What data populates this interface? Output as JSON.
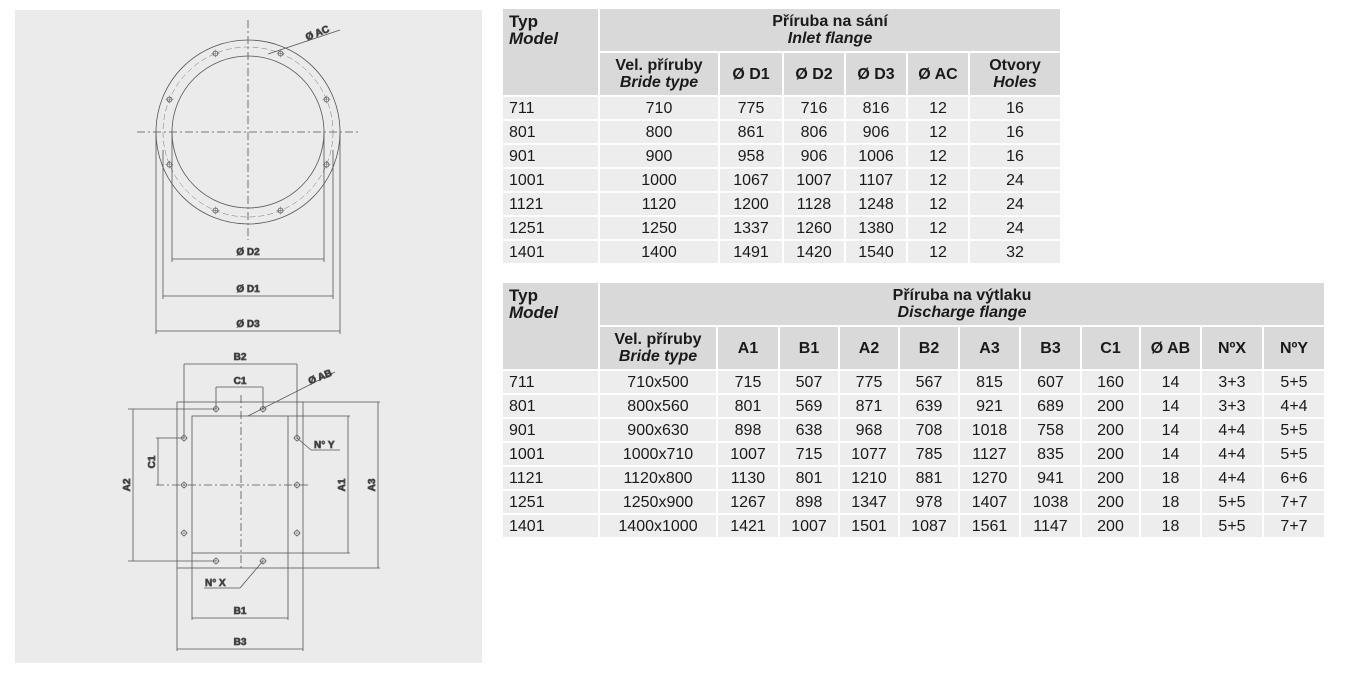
{
  "drawing": {
    "labels": {
      "ac": "Ø AC",
      "d1": "Ø D1",
      "d2": "Ø D2",
      "d3": "Ø D3",
      "ab": "Ø AB",
      "a1": "A1",
      "a2": "A2",
      "a3": "A3",
      "b1": "B1",
      "b2": "B2",
      "b3": "B3",
      "c1": "C1",
      "c1v": "C1",
      "nx": "N° X",
      "ny": "N° Y"
    }
  },
  "inlet": {
    "typ": "Typ",
    "model": "Model",
    "title": "Příruba na sání",
    "subtitle": "Inlet flange",
    "vel": "Vel. příruby",
    "bride": "Bride type",
    "cols": [
      "Ø D1",
      "Ø D2",
      "Ø D3",
      "Ø AC"
    ],
    "holes_cz": "Otvory",
    "holes_en": "Holes",
    "rows": [
      [
        "711",
        "710",
        "775",
        "716",
        "816",
        "12",
        "16"
      ],
      [
        "801",
        "800",
        "861",
        "806",
        "906",
        "12",
        "16"
      ],
      [
        "901",
        "900",
        "958",
        "906",
        "1006",
        "12",
        "16"
      ],
      [
        "1001",
        "1000",
        "1067",
        "1007",
        "1107",
        "12",
        "24"
      ],
      [
        "1121",
        "1120",
        "1200",
        "1128",
        "1248",
        "12",
        "24"
      ],
      [
        "1251",
        "1250",
        "1337",
        "1260",
        "1380",
        "12",
        "24"
      ],
      [
        "1401",
        "1400",
        "1491",
        "1420",
        "1540",
        "12",
        "32"
      ]
    ]
  },
  "discharge": {
    "typ": "Typ",
    "model": "Model",
    "title": "Příruba na výtlaku",
    "subtitle": "Discharge flange",
    "vel": "Vel. příruby",
    "bride": "Bride type",
    "cols": [
      "A1",
      "B1",
      "A2",
      "B2",
      "A3",
      "B3",
      "C1",
      "Ø AB",
      "NºX",
      "NºY"
    ],
    "rows": [
      [
        "711",
        "710x500",
        "715",
        "507",
        "775",
        "567",
        "815",
        "607",
        "160",
        "14",
        "3+3",
        "5+5"
      ],
      [
        "801",
        "800x560",
        "801",
        "569",
        "871",
        "639",
        "921",
        "689",
        "200",
        "14",
        "3+3",
        "4+4"
      ],
      [
        "901",
        "900x630",
        "898",
        "638",
        "968",
        "708",
        "1018",
        "758",
        "200",
        "14",
        "4+4",
        "5+5"
      ],
      [
        "1001",
        "1000x710",
        "1007",
        "715",
        "1077",
        "785",
        "1127",
        "835",
        "200",
        "14",
        "4+4",
        "5+5"
      ],
      [
        "1121",
        "1120x800",
        "1130",
        "801",
        "1210",
        "881",
        "1270",
        "941",
        "200",
        "18",
        "4+4",
        "6+6"
      ],
      [
        "1251",
        "1250x900",
        "1267",
        "898",
        "1347",
        "978",
        "1407",
        "1038",
        "200",
        "18",
        "5+5",
        "7+7"
      ],
      [
        "1401",
        "1400x1000",
        "1421",
        "1007",
        "1501",
        "1087",
        "1561",
        "1147",
        "200",
        "18",
        "5+5",
        "7+7"
      ]
    ]
  }
}
